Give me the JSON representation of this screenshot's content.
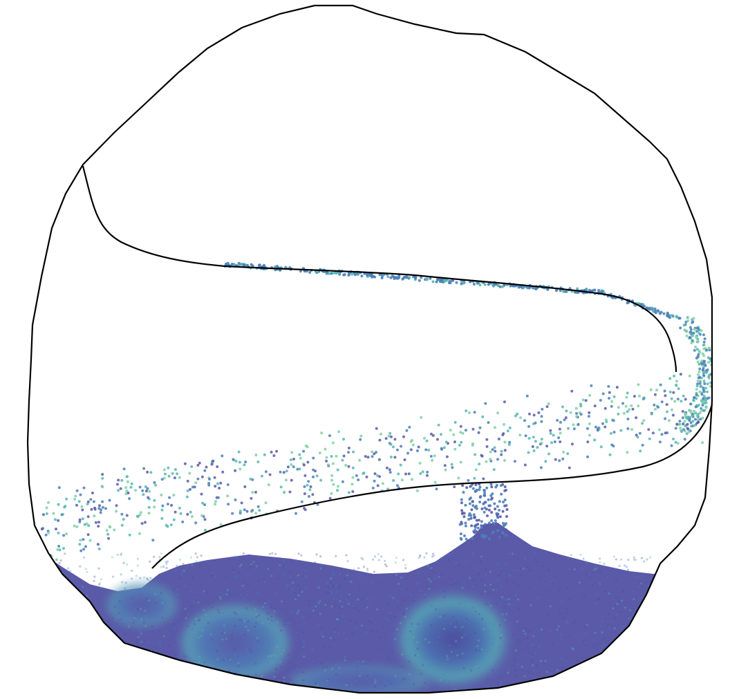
{
  "image": {
    "subject": "particle-fluid-simulation",
    "colors": {
      "background": "#ffffff",
      "container_outline": "#000000",
      "fluid_dense": "#5a5aa8",
      "fluid_deep": "#4f4c9e",
      "fluid_mid": "#4a7fb8",
      "fluid_light": "#58b6b0",
      "fluid_foam": "#7fd0a6"
    }
  }
}
